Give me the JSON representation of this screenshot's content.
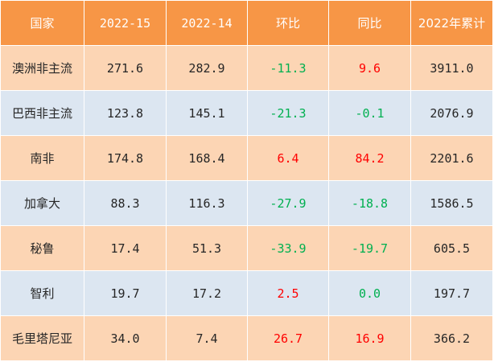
{
  "table": {
    "headers": [
      "国家",
      "2022-15",
      "2022-14",
      "环比",
      "同比",
      "2022年累计"
    ],
    "rows": [
      {
        "country": "澳洲非主流",
        "w15": "271.6",
        "w14": "282.9",
        "mom": "-11.3",
        "mom_sign": "neg",
        "yoy": "9.6",
        "yoy_sign": "pos",
        "cum": "3911.0"
      },
      {
        "country": "巴西非主流",
        "w15": "123.8",
        "w14": "145.1",
        "mom": "-21.3",
        "mom_sign": "neg",
        "yoy": "-0.1",
        "yoy_sign": "neg",
        "cum": "2076.9"
      },
      {
        "country": "南非",
        "w15": "174.8",
        "w14": "168.4",
        "mom": "6.4",
        "mom_sign": "pos",
        "yoy": "84.2",
        "yoy_sign": "pos",
        "cum": "2201.6"
      },
      {
        "country": "加拿大",
        "w15": "88.3",
        "w14": "116.3",
        "mom": "-27.9",
        "mom_sign": "neg",
        "yoy": "-18.8",
        "yoy_sign": "neg",
        "cum": "1586.5"
      },
      {
        "country": "秘鲁",
        "w15": "17.4",
        "w14": "51.3",
        "mom": "-33.9",
        "mom_sign": "neg",
        "yoy": "-19.7",
        "yoy_sign": "neg",
        "cum": "605.5"
      },
      {
        "country": "智利",
        "w15": "19.7",
        "w14": "17.2",
        "mom": "2.5",
        "mom_sign": "pos",
        "yoy": "0.0",
        "yoy_sign": "zero",
        "cum": "197.7"
      },
      {
        "country": "毛里塔尼亚",
        "w15": "34.0",
        "w14": "7.4",
        "mom": "26.7",
        "mom_sign": "pos",
        "yoy": "16.9",
        "yoy_sign": "pos",
        "cum": "366.2"
      }
    ]
  },
  "colors": {
    "header_bg": "#f79646",
    "header_text": "#ffffff",
    "row_odd_bg": "#fcd5b4",
    "row_even_bg": "#dce6f1",
    "positive": "#ff0000",
    "negative": "#00b050"
  }
}
